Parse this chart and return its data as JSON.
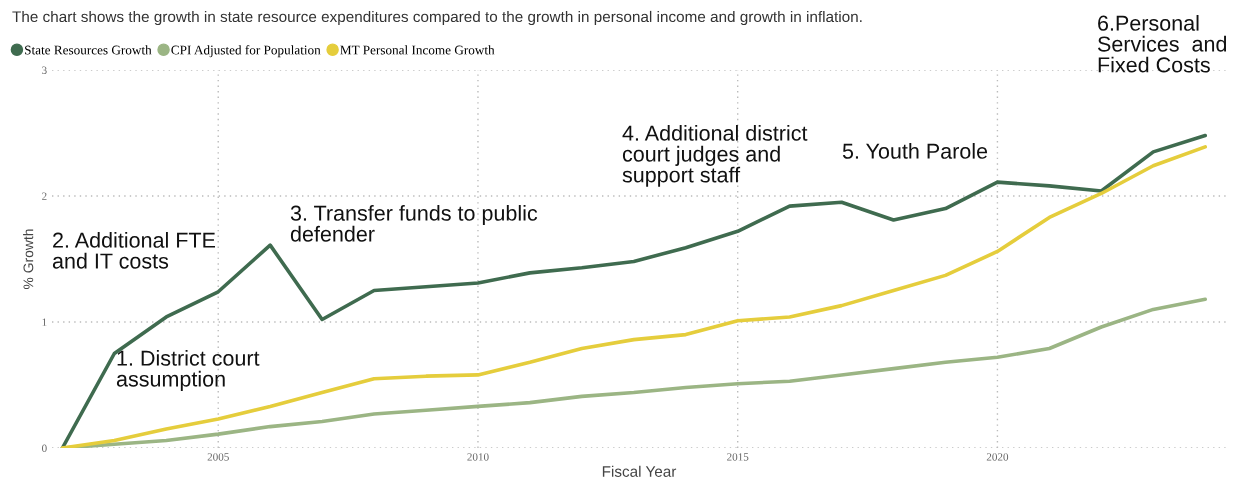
{
  "chart_data": {
    "type": "line",
    "title": "The chart shows the growth in state resource expenditures compared to the growth in personal income and growth in inflation.",
    "xlabel": "Fiscal Year",
    "ylabel": "% Growth",
    "x": [
      2002,
      2003,
      2004,
      2005,
      2006,
      2007,
      2008,
      2009,
      2010,
      2011,
      2012,
      2013,
      2014,
      2015,
      2016,
      2017,
      2018,
      2019,
      2020,
      2021,
      2022,
      2023,
      2024
    ],
    "series": [
      {
        "name": "State Resources Growth",
        "color": "#3f6b4f",
        "values": [
          0,
          0.75,
          1.04,
          1.24,
          1.61,
          1.02,
          1.25,
          1.28,
          1.31,
          1.39,
          1.43,
          1.48,
          1.59,
          1.72,
          1.92,
          1.95,
          1.81,
          1.9,
          2.11,
          2.08,
          2.04,
          2.35,
          2.48
        ]
      },
      {
        "name": "CPI Adjusted for Population",
        "color": "#9bb584",
        "values": [
          0,
          0.03,
          0.06,
          0.11,
          0.17,
          0.21,
          0.27,
          0.3,
          0.33,
          0.36,
          0.41,
          0.44,
          0.48,
          0.51,
          0.53,
          0.58,
          0.63,
          0.68,
          0.72,
          0.79,
          0.96,
          1.1,
          1.18
        ]
      },
      {
        "name": "MT Personal Income Growth",
        "color": "#e5cd3c",
        "values": [
          0,
          0.06,
          0.15,
          0.23,
          0.33,
          0.44,
          0.55,
          0.57,
          0.58,
          0.68,
          0.79,
          0.86,
          0.9,
          1.01,
          1.04,
          1.13,
          1.25,
          1.37,
          1.56,
          1.83,
          2.02,
          2.24,
          2.39
        ]
      }
    ],
    "xlim": [
      2001.8,
      2024.4
    ],
    "xticks": [
      2005,
      2010,
      2015,
      2020
    ],
    "ylim": [
      0,
      3
    ],
    "yticks": [
      0,
      1,
      2,
      3
    ],
    "grid": true,
    "legend": "top left",
    "marker": "none",
    "line_style": "solid",
    "annotations": [
      "1. District court\nassumption",
      "2. Additional FTE\nand IT costs",
      "3. Transfer funds to public\ndefender",
      "4. Additional district\ncourt judges and\nsupport staff",
      "5. Youth Parole",
      "6.Personal\nServices  and\nFixed Costs"
    ]
  }
}
